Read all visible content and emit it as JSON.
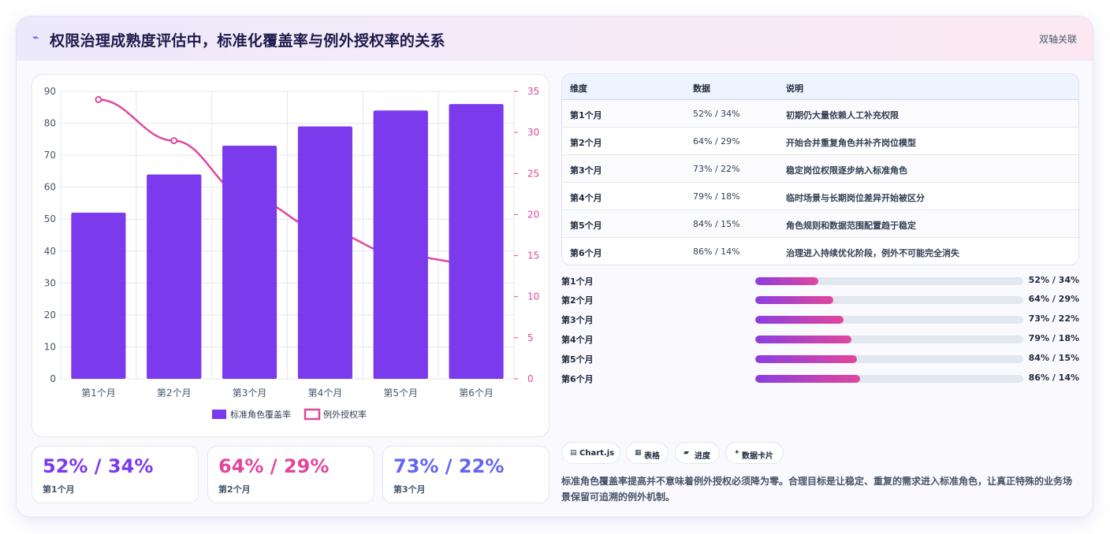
{
  "header": {
    "icon": "wave-icon",
    "title": "权限治理成熟度评估中，标准化覆盖率与例外授权率的关系",
    "tag": "双轴关联"
  },
  "chart_data": {
    "type": "bar+line",
    "categories": [
      "第1个月",
      "第2个月",
      "第3个月",
      "第4个月",
      "第5个月",
      "第6个月"
    ],
    "series": [
      {
        "name": "标准角色覆盖率",
        "type": "bar",
        "axis": "left",
        "color": "#7c3aed",
        "values": [
          52,
          64,
          73,
          79,
          84,
          86
        ]
      },
      {
        "name": "例外授权率",
        "type": "line",
        "axis": "right",
        "color": "#e0479d",
        "values": [
          34,
          29,
          22,
          18,
          15,
          14
        ]
      }
    ],
    "y_left": {
      "min": 0,
      "max": 90,
      "step": 10
    },
    "y_right": {
      "min": 0,
      "max": 35,
      "step": 5
    },
    "grid": true,
    "legend": "bottom"
  },
  "stats": [
    {
      "value": "52% / 34%",
      "label": "第1个月",
      "color": "#7c3aed"
    },
    {
      "value": "64% / 29%",
      "label": "第2个月",
      "color": "#e0479d"
    },
    {
      "value": "73% / 22%",
      "label": "第3个月",
      "color": "#6366f1"
    }
  ],
  "table": {
    "headers": [
      "维度",
      "数据",
      "说明"
    ],
    "rows": [
      [
        "第1个月",
        "52% / 34%",
        "初期仍大量依赖人工补充权限"
      ],
      [
        "第2个月",
        "64% / 29%",
        "开始合并重复角色并补齐岗位模型"
      ],
      [
        "第3个月",
        "73% / 22%",
        "稳定岗位权限逐步纳入标准角色"
      ],
      [
        "第4个月",
        "79% / 18%",
        "临时场景与长期岗位差异开始被区分"
      ],
      [
        "第5个月",
        "84% / 15%",
        "角色规则和数据范围配置趋于稳定"
      ],
      [
        "第6个月",
        "86% / 14%",
        "治理进入持续优化阶段，例外不可能完全消失"
      ]
    ]
  },
  "progress": [
    {
      "label": "第1个月",
      "value": "52% / 34%",
      "percent": 23.5
    },
    {
      "label": "第2个月",
      "value": "64% / 29%",
      "percent": 29
    },
    {
      "label": "第3个月",
      "value": "73% / 22%",
      "percent": 33
    },
    {
      "label": "第4个月",
      "value": "79% / 18%",
      "percent": 36
    },
    {
      "label": "第5个月",
      "value": "84% / 15%",
      "percent": 38
    },
    {
      "label": "第6个月",
      "value": "86% / 14%",
      "percent": 39
    }
  ],
  "chips": [
    {
      "icon": "chart-icon",
      "glyph": "▤",
      "label": "Chart.js"
    },
    {
      "icon": "table-icon",
      "glyph": "▦",
      "label": "表格"
    },
    {
      "icon": "folder-icon",
      "glyph": "▰",
      "label": "进度"
    },
    {
      "icon": "sparkle-icon",
      "glyph": "✦",
      "label": "数据卡片"
    }
  ],
  "note": "标准角色覆盖率提高并不意味着例外授权必须降为零。合理目标是让稳定、重复的需求进入标准角色，让真正特殊的业务场景保留可追溯的例外机制。"
}
